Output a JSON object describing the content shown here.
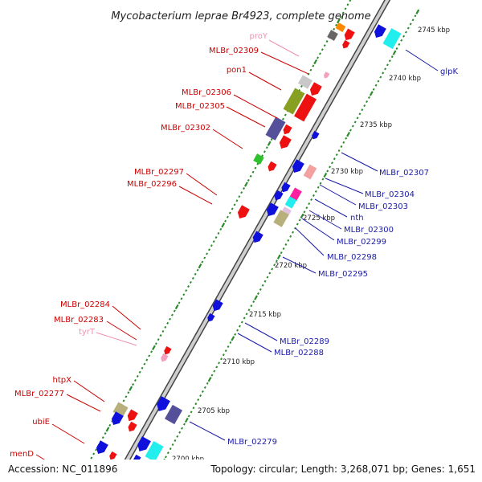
{
  "title": "Mycobacterium leprae Br4923, complete genome",
  "footer": {
    "accession": "Accession: NC_011896",
    "summary": "Topology: circular; Length: 3,268,071 bp; Genes: 1,651"
  },
  "colors": {
    "backbone": "#9a9a9a",
    "tick_minor": "#2a8a2a",
    "tick_major": "#2a8a2a",
    "label_red": "#cc0000",
    "label_blue": "#1a1aa8",
    "label_pink": "#f08fb0"
  },
  "kbp_ticks": [
    "2745 kbp",
    "2740 kbp",
    "2735 kbp",
    "2730 kbp",
    "2725 kbp",
    "2720 kbp",
    "2715 kbp",
    "2710 kbp",
    "2705 kbp",
    "2700 kbp"
  ],
  "left_labels": [
    {
      "text": "proY",
      "color": "pink"
    },
    {
      "text": "MLBr_02309",
      "color": "red"
    },
    {
      "text": "pon1",
      "color": "red"
    },
    {
      "text": "MLBr_02306",
      "color": "red"
    },
    {
      "text": "MLBr_02305",
      "color": "red"
    },
    {
      "text": "MLBr_02302",
      "color": "red"
    },
    {
      "text": "MLBr_02297",
      "color": "red"
    },
    {
      "text": "MLBr_02296",
      "color": "red"
    },
    {
      "text": "MLBr_02284",
      "color": "red"
    },
    {
      "text": "MLBr_02283",
      "color": "red"
    },
    {
      "text": "tyrT",
      "color": "pink"
    },
    {
      "text": "htpX",
      "color": "red"
    },
    {
      "text": "MLBr_02277",
      "color": "red"
    },
    {
      "text": "ubiE",
      "color": "red"
    },
    {
      "text": "menD",
      "color": "red"
    }
  ],
  "right_labels": [
    {
      "text": "glpK"
    },
    {
      "text": "MLBr_02307"
    },
    {
      "text": "MLBr_02304"
    },
    {
      "text": "MLBr_02303"
    },
    {
      "text": "nth"
    },
    {
      "text": "MLBr_02300"
    },
    {
      "text": "MLBr_02299"
    },
    {
      "text": "MLBr_02298"
    },
    {
      "text": "MLBr_02295"
    },
    {
      "text": "MLBr_02289"
    },
    {
      "text": "MLBr_02288"
    },
    {
      "text": "MLBr_02279"
    }
  ]
}
